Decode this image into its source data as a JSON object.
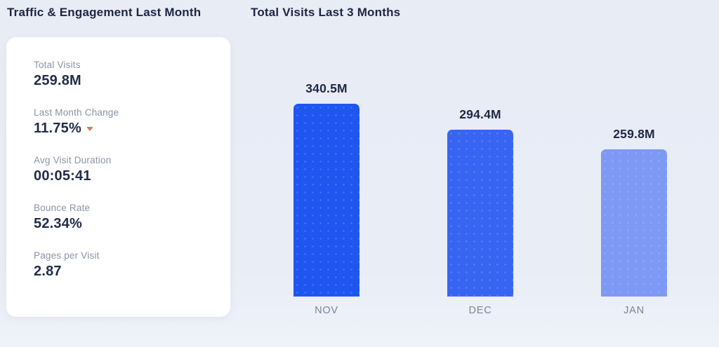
{
  "page": {
    "left_title": "Traffic & Engagement Last Month"
  },
  "stats_card": {
    "items": [
      {
        "label": "Total Visits",
        "value": "259.8M"
      },
      {
        "label": "Last Month Change",
        "value": "11.75%",
        "trend": "down",
        "trend_color": "#cd7f55"
      },
      {
        "label": "Avg Visit Duration",
        "value": "00:05:41"
      },
      {
        "label": "Bounce Rate",
        "value": "52.34%"
      },
      {
        "label": "Pages per Visit",
        "value": "2.87"
      }
    ]
  },
  "chart_data": {
    "type": "bar",
    "title": "Total Visits Last 3 Months",
    "categories": [
      "NOV",
      "DEC",
      "JAN"
    ],
    "values": [
      340.5,
      294.4,
      259.8
    ],
    "value_labels": [
      "340.5M",
      "294.4M",
      "259.8M"
    ],
    "unit": "M visits",
    "ylim": [
      0,
      340.5
    ],
    "bar_colors": [
      "#1f56f0",
      "#3765f2",
      "#7d99f3"
    ],
    "grid": false,
    "legend": false,
    "value_labels_position": "above bars",
    "category_labels_position": "below bars"
  },
  "colors": {
    "background": "#e9edf6",
    "card_background": "#ffffff",
    "title_text": "#1c2644",
    "stat_label_text": "#8a93a6",
    "stat_value_text": "#232d49",
    "month_label_text": "#7b8499",
    "trend_down": "#cd7f55"
  }
}
